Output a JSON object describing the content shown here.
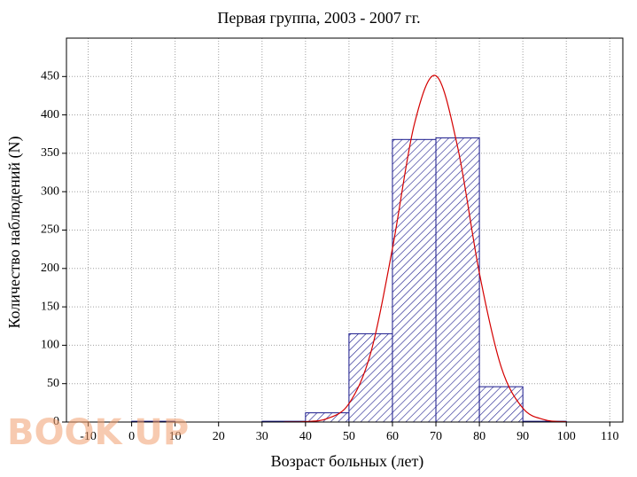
{
  "chart_data": {
    "type": "histogram",
    "title": "Первая группа, 2003 - 2007 гг.",
    "x_label": "Возраст больных (лет)",
    "y_label": "Количество наблюдений (N)",
    "watermark": "BOOK UP",
    "bins": [
      -10,
      0,
      10,
      20,
      30,
      40,
      50,
      60,
      70,
      80,
      90,
      100,
      110
    ],
    "values": [
      0,
      1,
      0,
      0,
      1,
      12,
      115,
      368,
      370,
      46,
      1,
      0
    ],
    "color": "#1a1a8c",
    "curve": {
      "color": "#d40000",
      "x": [
        35,
        40,
        45,
        50,
        55,
        60,
        65,
        70,
        75,
        80,
        85,
        90,
        95,
        100
      ],
      "values": [
        0.1,
        0.6,
        4.5,
        24,
        90,
        226,
        387,
        451,
        358,
        194,
        72,
        18,
        3,
        0.4
      ]
    },
    "xlim": [
      -15,
      113
    ],
    "ylim": [
      0,
      500
    ],
    "xticks": [
      -10,
      0,
      10,
      20,
      30,
      40,
      50,
      60,
      70,
      80,
      90,
      100,
      110
    ],
    "yticks": [
      0,
      50,
      100,
      150,
      200,
      250,
      300,
      350,
      400,
      450
    ],
    "grid": true
  }
}
